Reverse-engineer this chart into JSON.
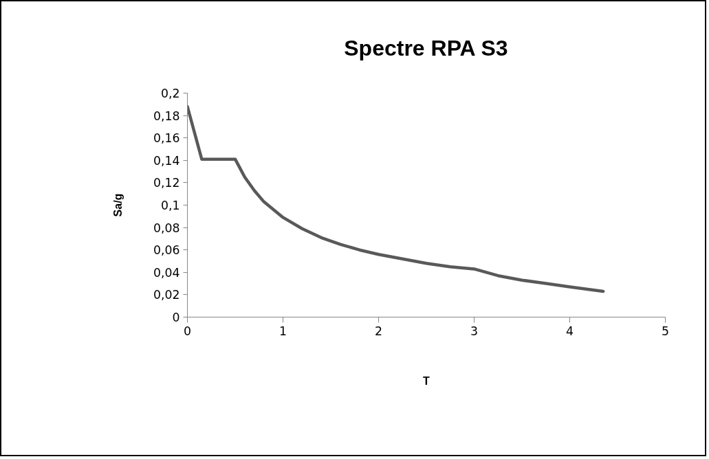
{
  "chart_data": {
    "type": "line",
    "title": "Spectre RPA S3",
    "xlabel": "T",
    "ylabel": "Sa/g",
    "x": [
      0,
      0.15,
      0.5,
      0.6,
      0.7,
      0.8,
      1,
      1.2,
      1.4,
      1.6,
      1.8,
      2,
      2.25,
      2.5,
      2.75,
      3,
      3.25,
      3.5,
      3.75,
      4,
      4.35
    ],
    "series": [
      {
        "color": "#595959",
        "values": [
          0.188,
          0.141,
          0.141,
          0.125,
          0.113,
          0.103,
          0.089,
          0.079,
          0.071,
          0.065,
          0.06,
          0.056,
          0.052,
          0.048,
          0.045,
          0.043,
          0.037,
          0.033,
          0.03,
          0.027,
          0.023
        ]
      }
    ],
    "xlim": [
      0,
      5
    ],
    "xticks": [
      0,
      1,
      2,
      3,
      4,
      5
    ],
    "ylim": [
      0,
      0.2
    ],
    "yticks": [
      0,
      {
        "value": 0.02,
        "label": "0,02"
      },
      {
        "value": 0.04,
        "label": "0,04"
      },
      {
        "value": 0.06,
        "label": "0,06"
      },
      {
        "value": 0.08,
        "label": "0,08"
      },
      {
        "value": 0.1,
        "label": "0,1"
      },
      {
        "value": 0.12,
        "label": "0,12"
      },
      {
        "value": 0.14,
        "label": "0,14"
      },
      {
        "value": 0.16,
        "label": "0,16"
      },
      {
        "value": 0.18,
        "label": "0,18"
      },
      {
        "value": 0.2,
        "label": "0,2"
      }
    ],
    "grid": false,
    "marker": "none",
    "line_style": "solid"
  }
}
